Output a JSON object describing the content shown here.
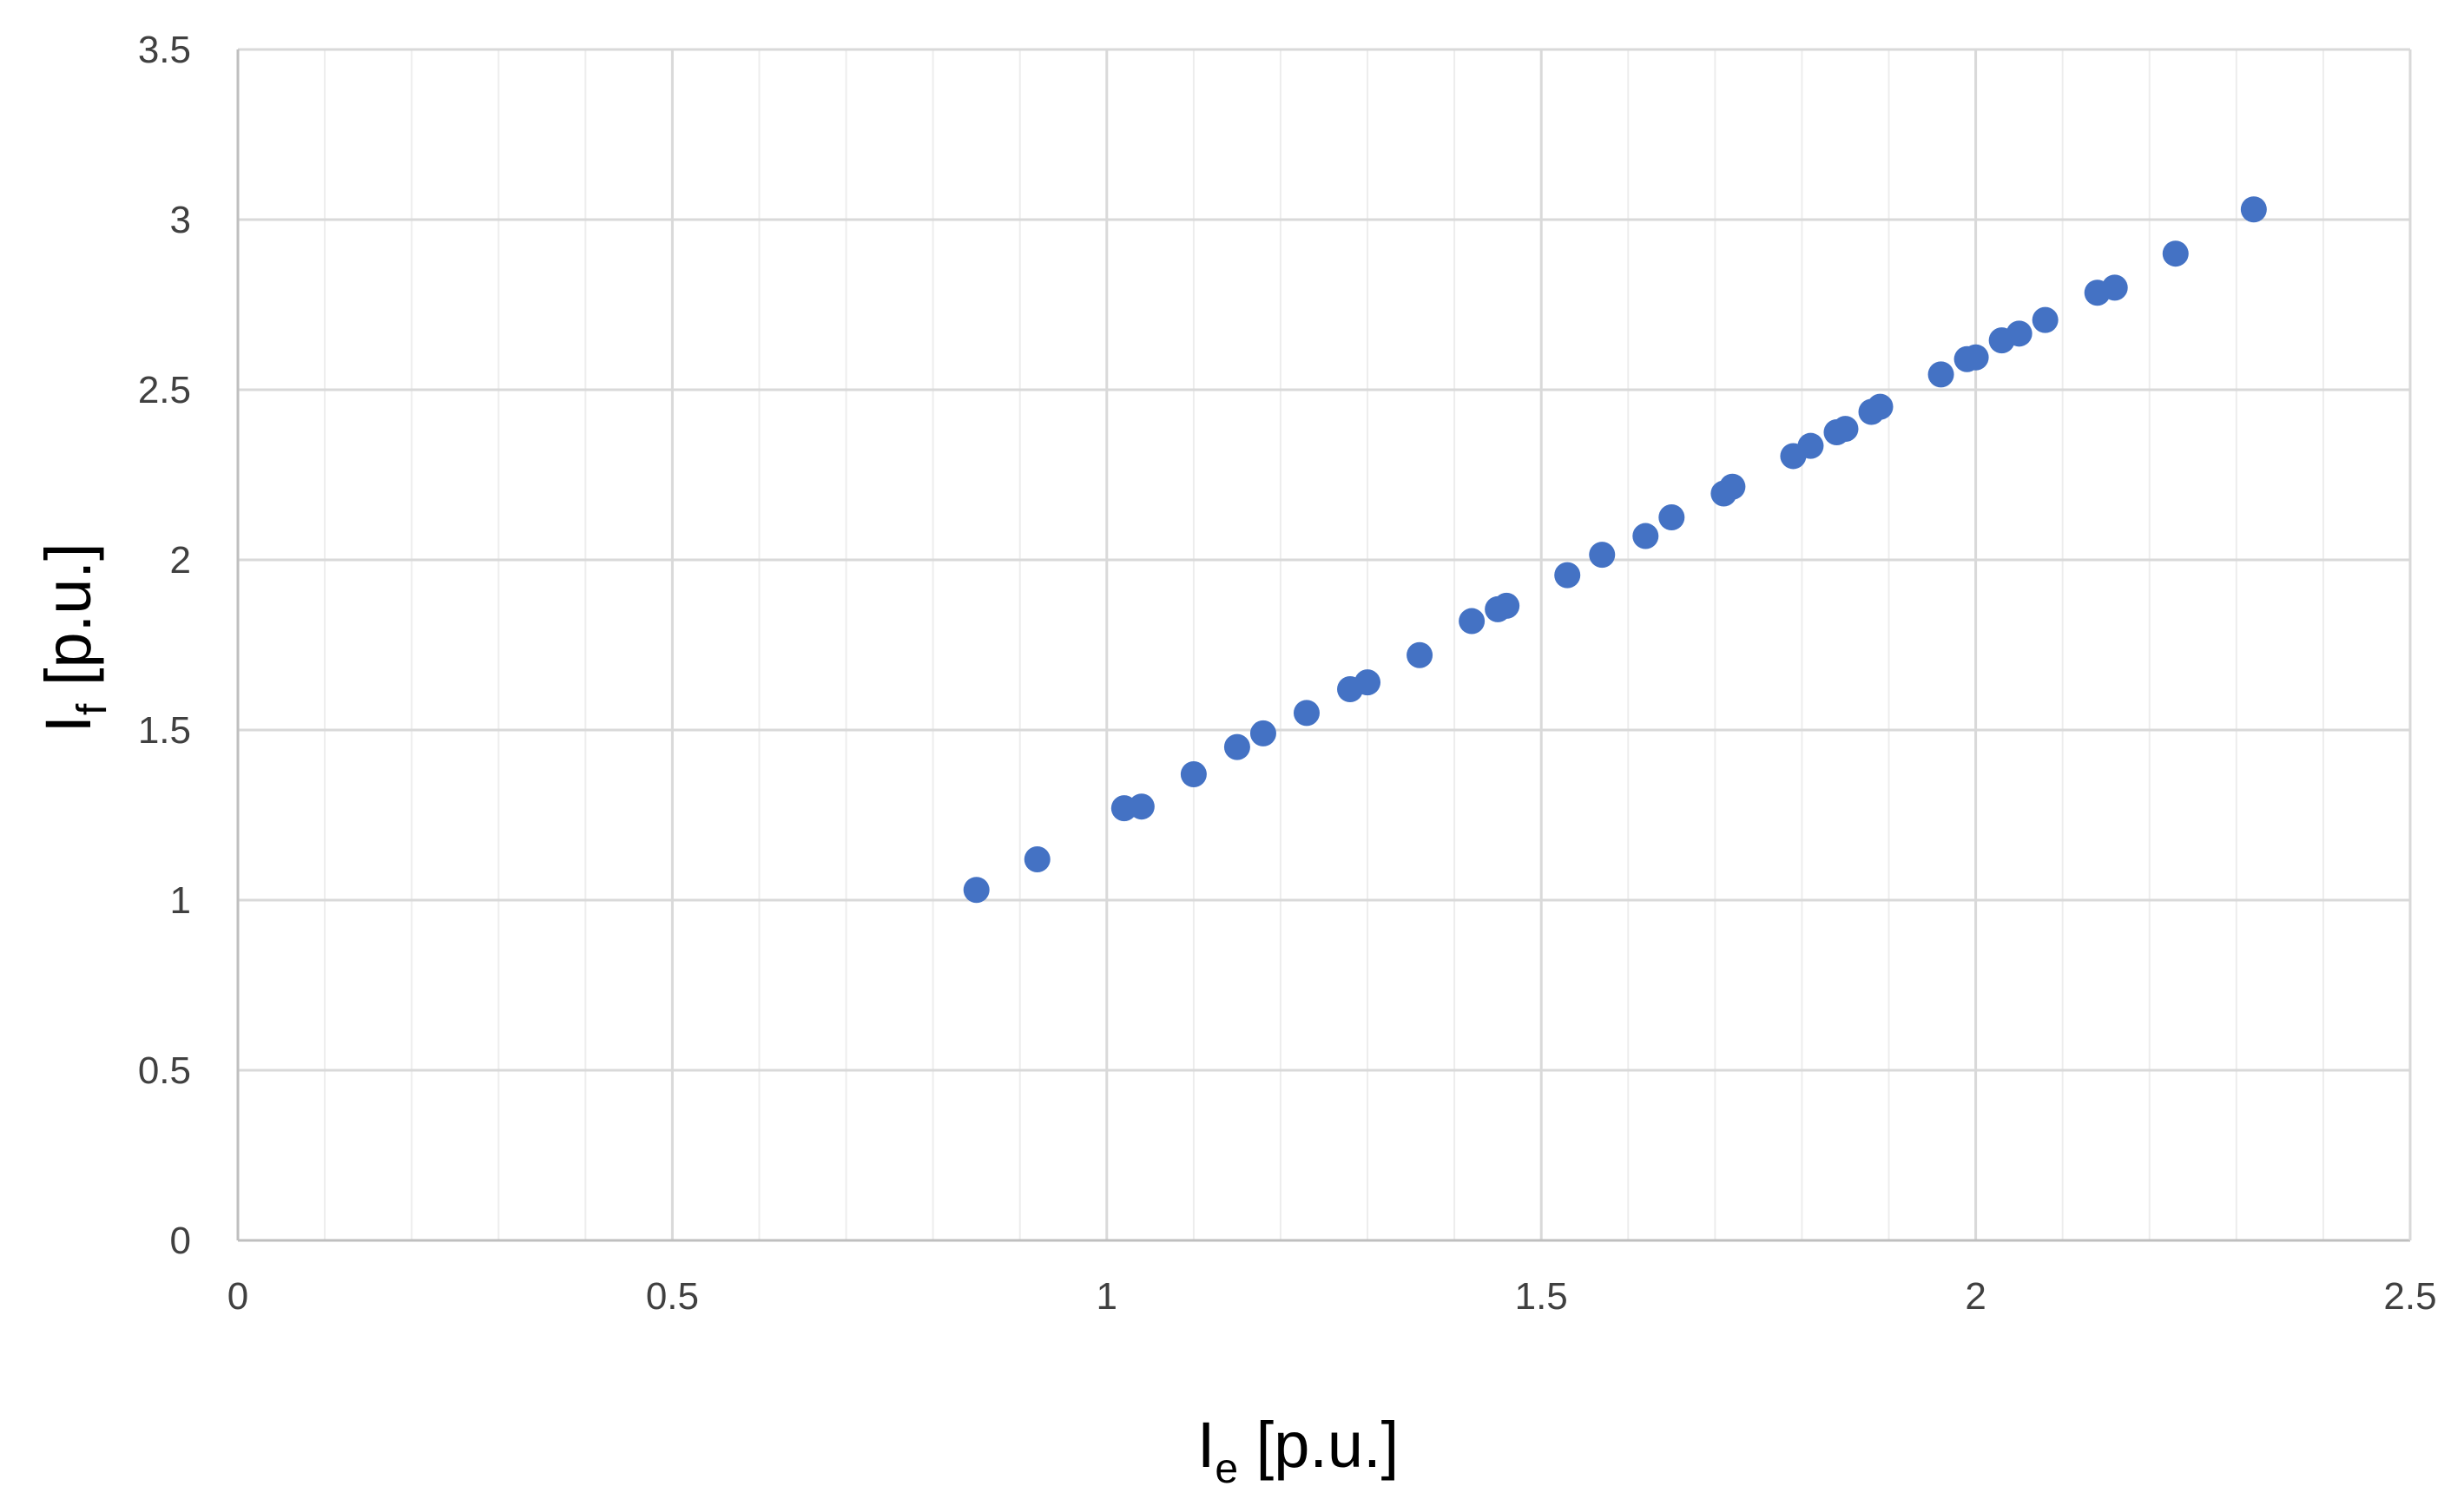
{
  "chart_data": {
    "type": "scatter",
    "title": "",
    "xlabel": {
      "main": "I",
      "sub": "e",
      "unit": " [p.u.]"
    },
    "ylabel": {
      "main": "I",
      "sub": "f",
      "unit": " [p.u.]"
    },
    "xlim": [
      0,
      2.5
    ],
    "ylim": [
      0,
      3.5
    ],
    "x_major_ticks": [
      0,
      0.5,
      1,
      1.5,
      2,
      2.5
    ],
    "x_tick_labels": [
      "0",
      "0.5",
      "1",
      "1.5",
      "2",
      "2.5"
    ],
    "y_major_ticks": [
      0,
      0.5,
      1,
      1.5,
      2,
      2.5,
      3,
      3.5
    ],
    "y_tick_labels": [
      "0",
      "0.5",
      "1",
      "1.5",
      "2",
      "2.5",
      "3",
      "3.5"
    ],
    "x_minor_step": 0.1,
    "grid": true,
    "legend": false,
    "marker_color": "#4472C4",
    "gridline_color": "#D9D9D9",
    "axis_color": "#BFBFBF",
    "series": [
      {
        "points": [
          [
            0.85,
            1.03
          ],
          [
            0.92,
            1.12
          ],
          [
            1.02,
            1.27
          ],
          [
            1.04,
            1.275
          ],
          [
            1.1,
            1.37
          ],
          [
            1.15,
            1.45
          ],
          [
            1.18,
            1.49
          ],
          [
            1.23,
            1.55
          ],
          [
            1.28,
            1.62
          ],
          [
            1.3,
            1.64
          ],
          [
            1.36,
            1.72
          ],
          [
            1.42,
            1.82
          ],
          [
            1.45,
            1.855
          ],
          [
            1.46,
            1.865
          ],
          [
            1.53,
            1.955
          ],
          [
            1.57,
            2.015
          ],
          [
            1.62,
            2.07
          ],
          [
            1.65,
            2.125
          ],
          [
            1.71,
            2.195
          ],
          [
            1.72,
            2.215
          ],
          [
            1.79,
            2.305
          ],
          [
            1.81,
            2.335
          ],
          [
            1.84,
            2.375
          ],
          [
            1.85,
            2.385
          ],
          [
            1.88,
            2.435
          ],
          [
            1.89,
            2.45
          ],
          [
            1.96,
            2.545
          ],
          [
            1.99,
            2.59
          ],
          [
            2.0,
            2.595
          ],
          [
            2.03,
            2.645
          ],
          [
            2.05,
            2.665
          ],
          [
            2.08,
            2.705
          ],
          [
            2.14,
            2.785
          ],
          [
            2.16,
            2.8
          ],
          [
            2.23,
            2.9
          ],
          [
            2.32,
            3.03
          ]
        ]
      }
    ]
  }
}
